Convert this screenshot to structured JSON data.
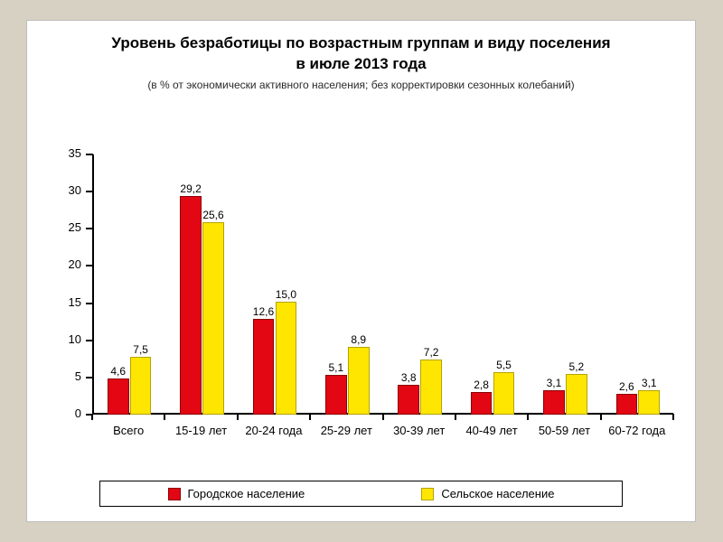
{
  "page": {
    "background_color": "#d7d1c3"
  },
  "card": {
    "background_color": "#ffffff",
    "border_color": "#bdbdbd"
  },
  "title": {
    "line1": "Уровень безработицы по возрастным группам и виду поселения",
    "line2": "в июле 2013 года",
    "fontsize_pt": 17,
    "fontweight": "bold"
  },
  "subtitle": {
    "text": "(в % от экономически активного населения; без корректировки сезонных колебаний)",
    "fontsize_pt": 12
  },
  "chart": {
    "type": "grouped-bar",
    "categories": [
      "Всего",
      "15-19 лет",
      "20-24 года",
      "25-29 лет",
      "30-39 лет",
      "40-49 лет",
      "50-59 лет",
      "60-72 года"
    ],
    "series": [
      {
        "name": "Городское население",
        "color": "#e30613",
        "border_color": "#8a0006",
        "values": [
          4.6,
          29.2,
          12.6,
          5.1,
          3.8,
          2.8,
          3.1,
          2.6
        ],
        "value_labels": [
          "4,6",
          "29,2",
          "12,6",
          "5,1",
          "3,8",
          "2,8",
          "3,1",
          "2,6"
        ]
      },
      {
        "name": "Сельское население",
        "color": "#ffe600",
        "border_color": "#b4a200",
        "values": [
          7.5,
          25.6,
          15.0,
          8.9,
          7.2,
          5.5,
          5.2,
          3.1
        ],
        "value_labels": [
          "7,5",
          "25,6",
          "15,0",
          "8,9",
          "7,2",
          "5,5",
          "5,2",
          "3,1"
        ]
      }
    ],
    "y_axis": {
      "min": 0,
      "max": 35,
      "step": 5,
      "ticks": [
        0,
        5,
        10,
        15,
        20,
        25,
        30,
        35
      ],
      "tick_labels": [
        "0",
        "5",
        "10",
        "15",
        "20",
        "25",
        "30",
        "35"
      ]
    },
    "tick_fontsize_pt": 13,
    "valuelabel_fontsize_pt": 12,
    "bar_group_width_ratio": 0.58,
    "bar_gap_ratio": 0.04,
    "grid": false,
    "background_color": "#ffffff",
    "axis_color": "#000000"
  },
  "legend": {
    "items": [
      "Городское население",
      "Сельское население"
    ],
    "fontsize_pt": 13
  }
}
